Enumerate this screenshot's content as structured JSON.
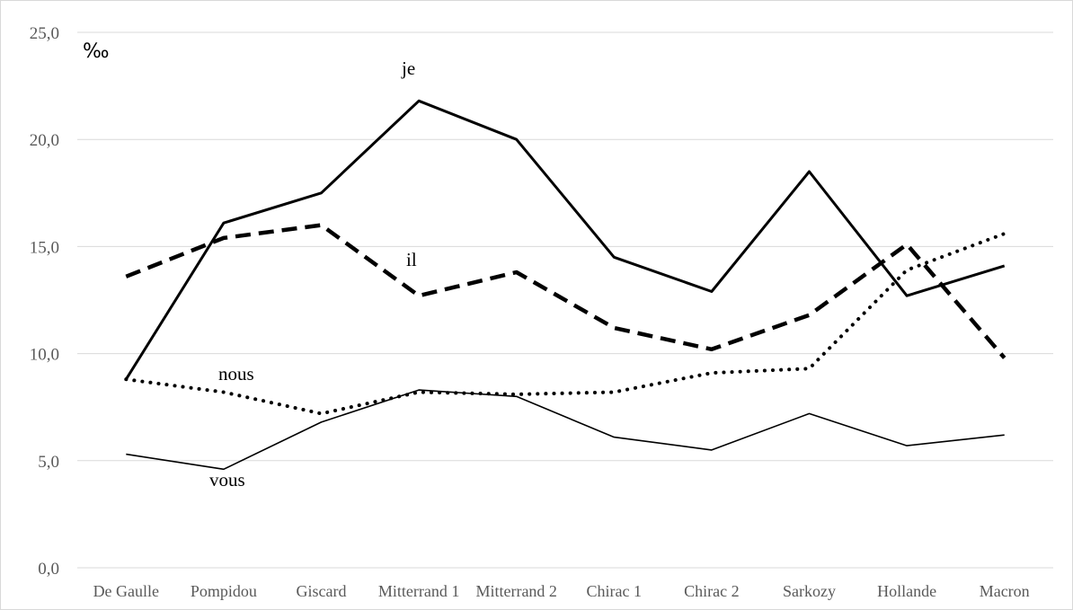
{
  "chart_data": {
    "type": "line",
    "categories": [
      "De Gaulle",
      "Pompidou",
      "Giscard",
      "Mitterrand 1",
      "Mitterrand 2",
      "Chirac 1",
      "Chirac 2",
      "Sarkozy",
      "Hollande",
      "Macron"
    ],
    "y_ticks": [
      "0,0",
      "5,0",
      "10,0",
      "15,0",
      "20,0",
      "25,0"
    ],
    "ylim": [
      0,
      25
    ],
    "ylabel": "‰",
    "grid": true,
    "series": [
      {
        "name": "je",
        "style": "solid-thick",
        "color": "#000000",
        "values": [
          8.8,
          16.1,
          17.5,
          21.8,
          20.0,
          14.5,
          12.9,
          18.5,
          12.7,
          14.1
        ]
      },
      {
        "name": "il",
        "style": "dashed-thick",
        "color": "#000000",
        "values": [
          13.6,
          15.4,
          16.0,
          12.7,
          13.8,
          11.2,
          10.2,
          11.8,
          15.1,
          9.8
        ]
      },
      {
        "name": "nous",
        "style": "dotted",
        "color": "#000000",
        "values": [
          8.8,
          8.2,
          7.2,
          8.2,
          8.1,
          8.2,
          9.1,
          9.3,
          13.9,
          15.6
        ]
      },
      {
        "name": "vous",
        "style": "solid-thin",
        "color": "#000000",
        "values": [
          5.3,
          4.6,
          6.8,
          8.3,
          8.0,
          6.1,
          5.5,
          7.2,
          5.7,
          6.2
        ]
      }
    ]
  }
}
